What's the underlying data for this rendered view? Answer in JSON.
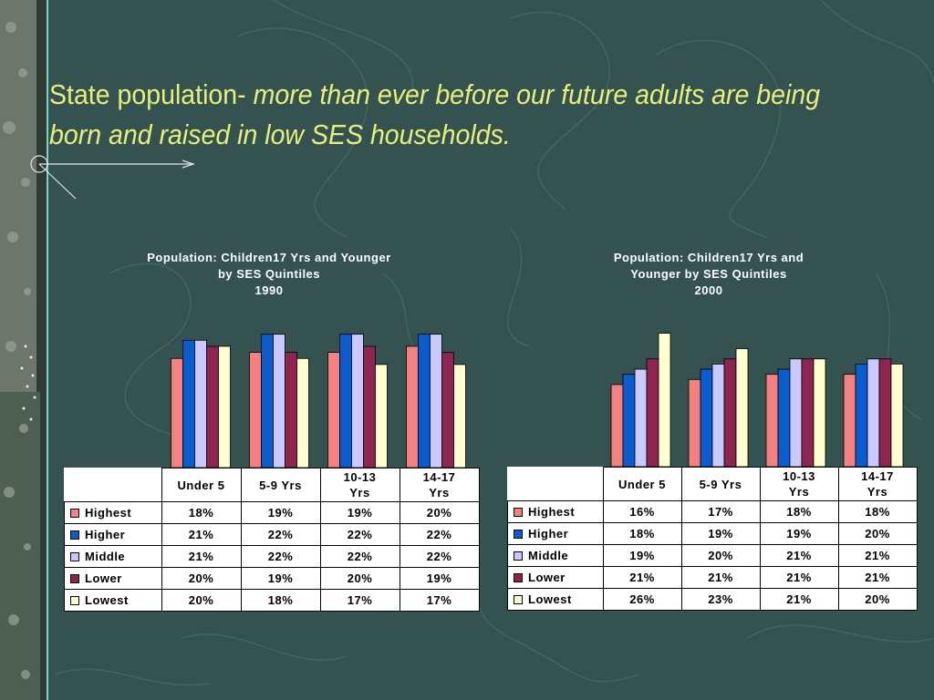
{
  "slide": {
    "title_plain": "State population-",
    "title_italic": " more than ever before our future adults are being born and raised in low SES households."
  },
  "colors": {
    "Highest": "#f58080",
    "Higher": "#0a5ccf",
    "Middle": "#c9c8ff",
    "Lower": "#8e2450",
    "Lowest": "#ffffd0",
    "title": "#e8ee7a",
    "background": "#34524f"
  },
  "chart_data": [
    {
      "type": "bar",
      "title_lines": [
        "Population: Children17 Yrs and Younger",
        "by SES Quintiles",
        "1990"
      ],
      "categories": [
        "Under 5",
        "5-9 Yrs",
        "10-13 Yrs",
        "14-17 Yrs"
      ],
      "category_lines": [
        [
          "Under 5"
        ],
        [
          "5-9 Yrs"
        ],
        [
          "10-13",
          "Yrs"
        ],
        [
          "14-17",
          "Yrs"
        ]
      ],
      "series": [
        {
          "name": "Highest",
          "values": [
            18,
            19,
            19,
            20
          ],
          "labels": [
            "18%",
            "19%",
            "19%",
            "20%"
          ]
        },
        {
          "name": "Higher",
          "values": [
            21,
            22,
            22,
            22
          ],
          "labels": [
            "21%",
            "22%",
            "22%",
            "22%"
          ]
        },
        {
          "name": "Middle",
          "values": [
            21,
            22,
            22,
            22
          ],
          "labels": [
            "21%",
            "22%",
            "22%",
            "22%"
          ]
        },
        {
          "name": "Lower",
          "values": [
            20,
            19,
            20,
            19
          ],
          "labels": [
            "20%",
            "19%",
            "20%",
            "19%"
          ]
        },
        {
          "name": "Lowest",
          "values": [
            20,
            18,
            17,
            17
          ],
          "labels": [
            "20%",
            "18%",
            "17%",
            "17%"
          ]
        }
      ],
      "ylim": [
        0,
        23
      ]
    },
    {
      "type": "bar",
      "title_lines": [
        "Population: Children17 Yrs and",
        "Younger by SES Quintiles",
        "2000"
      ],
      "categories": [
        "Under 5",
        "5-9 Yrs",
        "10-13 Yrs",
        "14-17 Yrs"
      ],
      "category_lines": [
        [
          "Under 5"
        ],
        [
          "5-9 Yrs"
        ],
        [
          "10-13",
          "Yrs"
        ],
        [
          "14-17",
          "Yrs"
        ]
      ],
      "series": [
        {
          "name": "Highest",
          "values": [
            16,
            17,
            18,
            18
          ],
          "labels": [
            "16%",
            "17%",
            "18%",
            "18%"
          ]
        },
        {
          "name": "Higher",
          "values": [
            18,
            19,
            19,
            20
          ],
          "labels": [
            "18%",
            "19%",
            "19%",
            "20%"
          ]
        },
        {
          "name": "Middle",
          "values": [
            19,
            20,
            21,
            21
          ],
          "labels": [
            "19%",
            "20%",
            "21%",
            "21%"
          ]
        },
        {
          "name": "Lower",
          "values": [
            21,
            21,
            21,
            21
          ],
          "labels": [
            "21%",
            "21%",
            "21%",
            "21%"
          ]
        },
        {
          "name": "Lowest",
          "values": [
            26,
            23,
            21,
            20
          ],
          "labels": [
            "26%",
            "23%",
            "21%",
            "20%"
          ]
        }
      ],
      "ylim": [
        0,
        27
      ]
    }
  ]
}
